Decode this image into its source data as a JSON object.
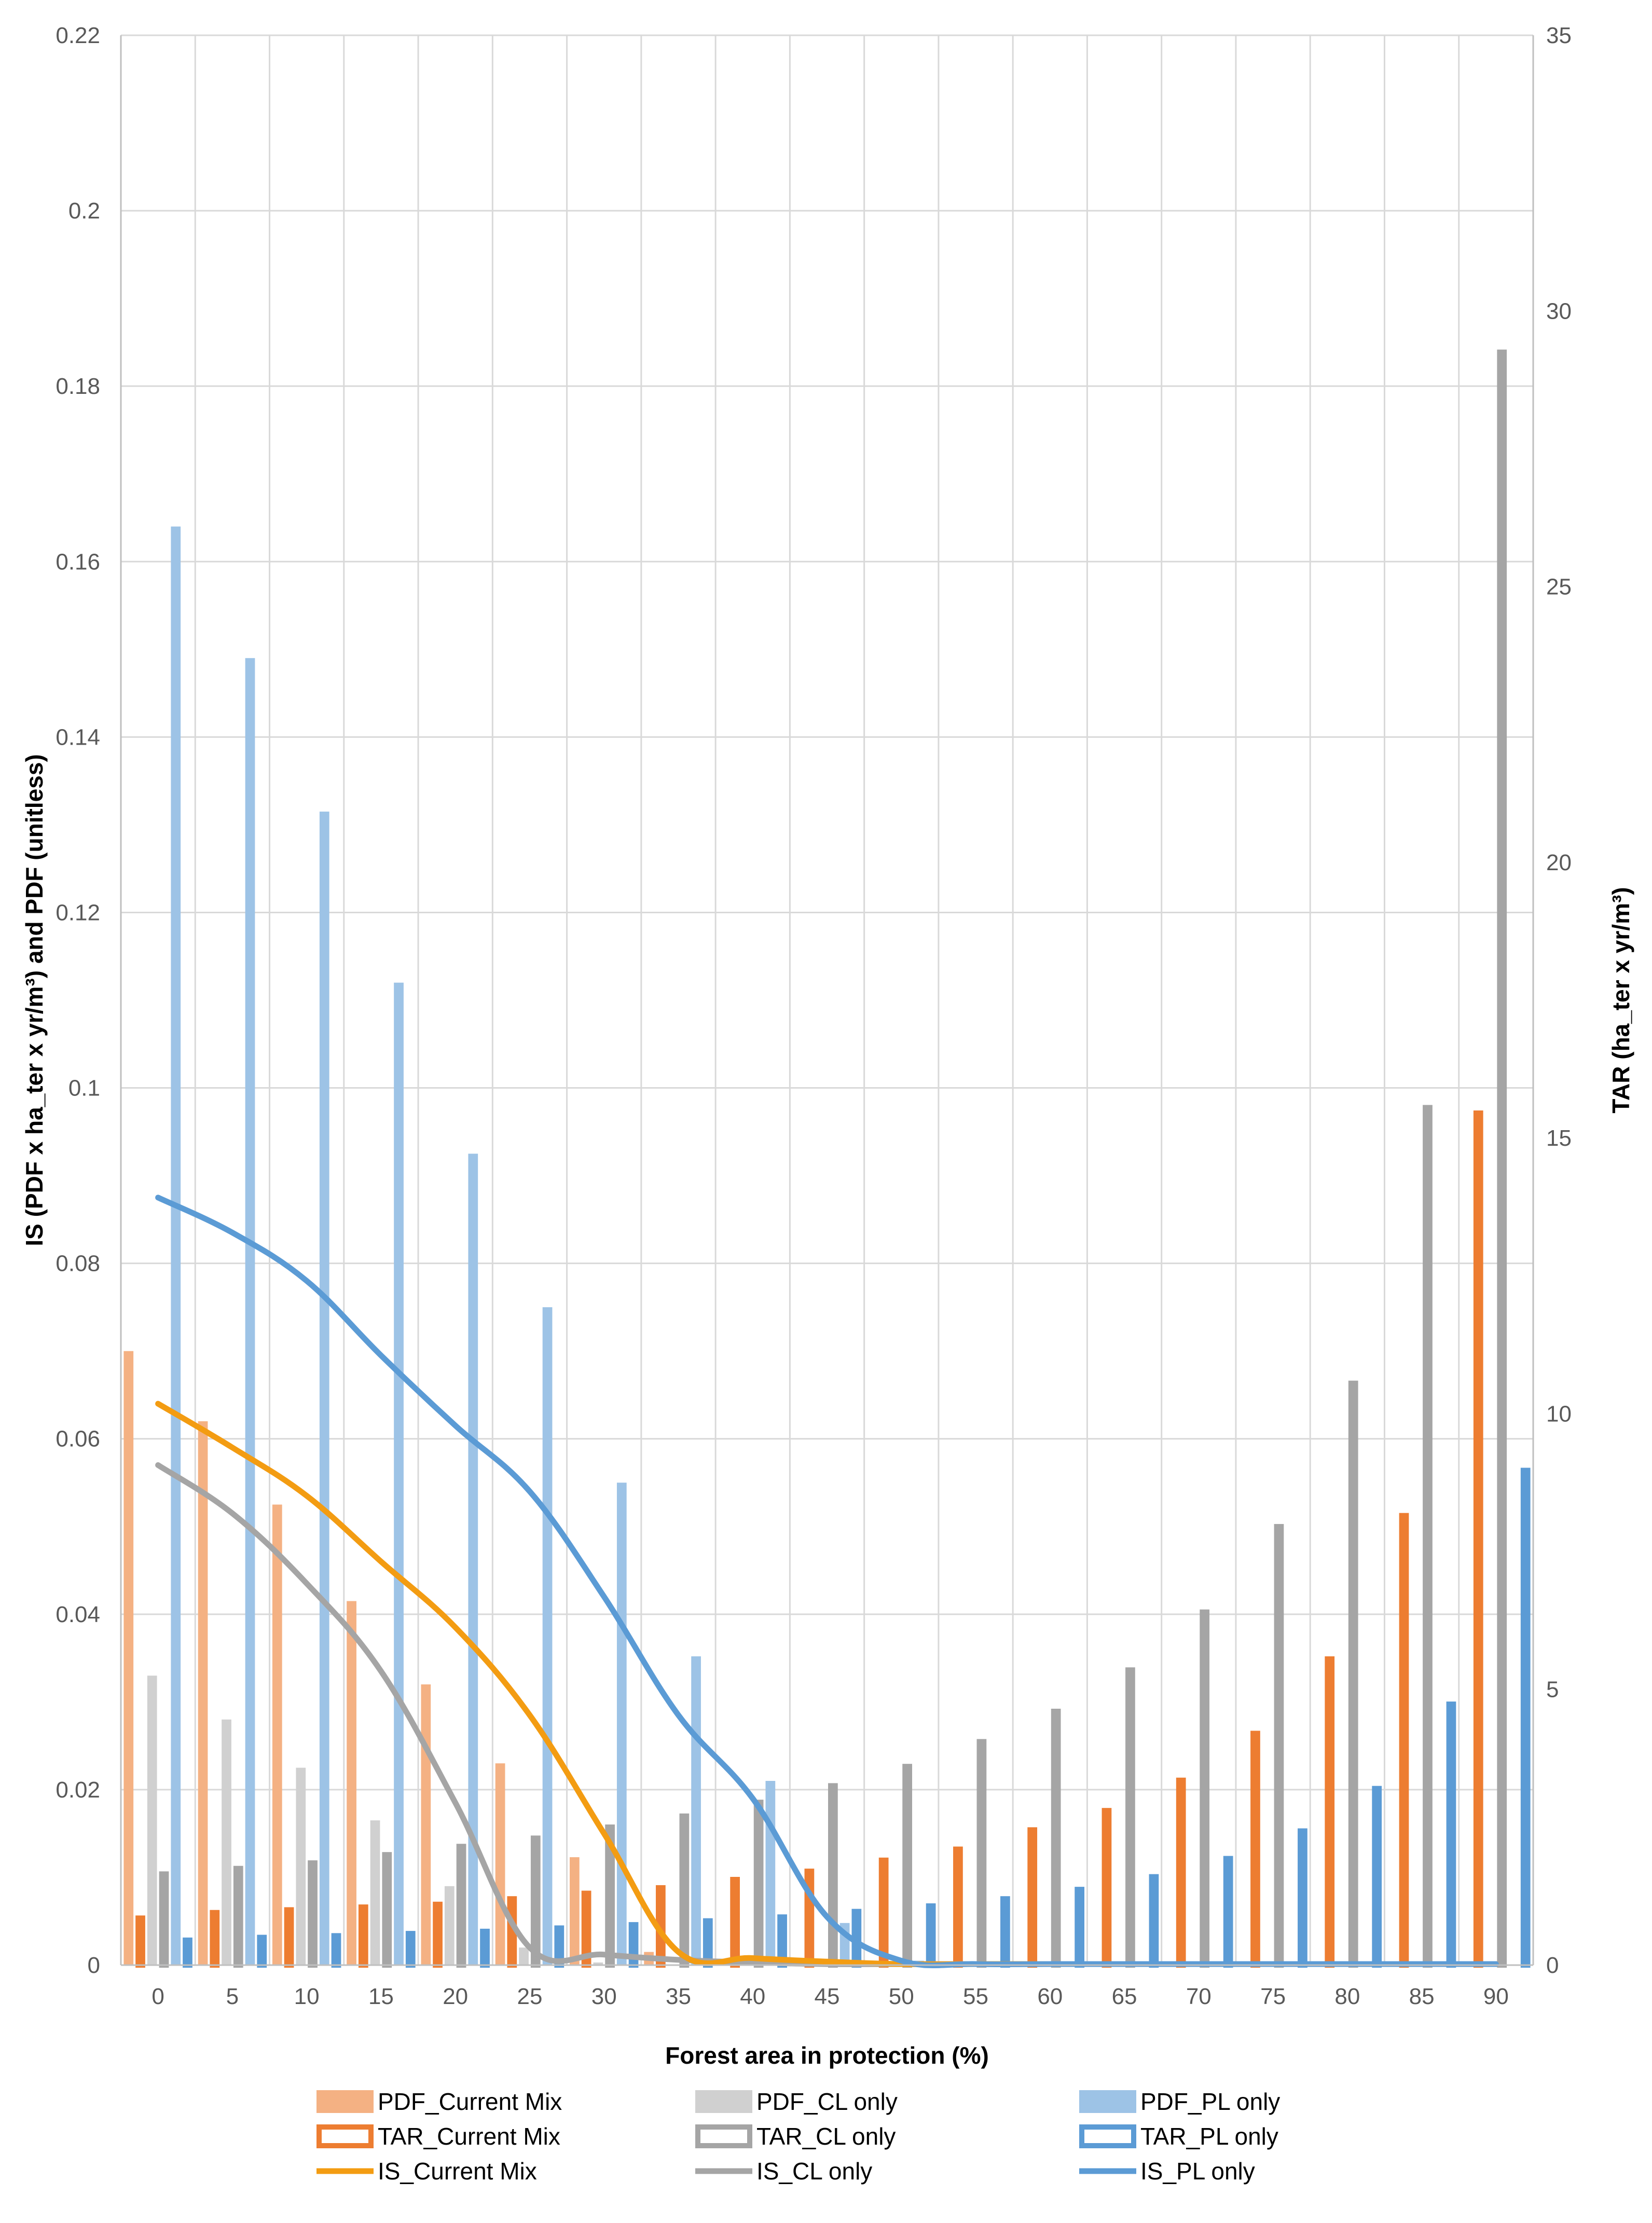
{
  "chart_data": {
    "type": "bar",
    "xlabel": "Forest area in protection (%)",
    "ylabel": "IS (PDF x ha_ter x yr/m³) and PDF (unitless)",
    "y2label": "TAR (ha_ter x yr/m³)",
    "categories": [
      "0",
      "5",
      "10",
      "15",
      "20",
      "25",
      "30",
      "35",
      "40",
      "45",
      "50",
      "55",
      "60",
      "65",
      "70",
      "75",
      "80",
      "85",
      "90"
    ],
    "ylim": [
      0,
      0.22
    ],
    "yticks": [
      "0",
      "0.02",
      "0.04",
      "0.06",
      "0.08",
      "0.1",
      "0.12",
      "0.14",
      "0.16",
      "0.18",
      "0.2",
      "0.22"
    ],
    "y2lim": [
      0,
      35
    ],
    "y2ticks": [
      "0",
      "5",
      "10",
      "15",
      "20",
      "25",
      "30",
      "35"
    ],
    "grid": true,
    "legend_position": "bottom",
    "series": [
      {
        "name": "PDF_Current Mix",
        "axis": "left",
        "kind": "bar-filled",
        "color": "#F4B183",
        "values": [
          0.07,
          0.062,
          0.0525,
          0.0415,
          0.032,
          0.023,
          0.0123,
          0.0015,
          0.0005,
          0,
          0,
          0,
          0,
          0,
          0,
          0,
          0,
          0,
          0
        ]
      },
      {
        "name": "TAR_Current Mix",
        "axis": "right",
        "kind": "bar-outline",
        "color": "#ED7D31",
        "values": [
          0.9,
          1.0,
          1.05,
          1.1,
          1.15,
          1.25,
          1.35,
          1.45,
          1.6,
          1.75,
          1.95,
          2.15,
          2.5,
          2.85,
          3.4,
          4.25,
          5.6,
          8.2,
          15.5
        ]
      },
      {
        "name": "IS_Current Mix",
        "axis": "left",
        "kind": "line",
        "color": "#F39C12",
        "values": [
          0.064,
          0.059,
          0.0535,
          0.046,
          0.0385,
          0.0285,
          0.015,
          0.0015,
          0.0008,
          0.0004,
          0,
          0,
          0,
          0,
          0,
          0,
          0,
          0,
          0
        ]
      },
      {
        "name": "PDF_CL only",
        "axis": "left",
        "kind": "bar-filled",
        "color": "#D0D0D0",
        "values": [
          0.033,
          0.028,
          0.0225,
          0.0165,
          0.009,
          0.002,
          0.0003,
          0,
          0,
          0,
          0,
          0,
          0,
          0,
          0,
          0,
          0,
          0,
          0
        ]
      },
      {
        "name": "TAR_CL only",
        "axis": "right",
        "kind": "bar-outline",
        "color": "#A5A5A5",
        "values": [
          1.7,
          1.8,
          1.9,
          2.05,
          2.2,
          2.35,
          2.55,
          2.75,
          3.0,
          3.3,
          3.65,
          4.1,
          4.65,
          5.4,
          6.45,
          8.0,
          10.6,
          15.6,
          29.3
        ]
      },
      {
        "name": "IS_CL only",
        "axis": "left",
        "kind": "line",
        "color": "#A5A5A5",
        "values": [
          0.057,
          0.0515,
          0.0435,
          0.0335,
          0.0185,
          0.002,
          0.0012,
          0.0006,
          0.0003,
          0,
          0,
          0,
          0,
          0,
          0,
          0,
          0,
          0,
          0
        ]
      },
      {
        "name": "PDF_PL only",
        "axis": "left",
        "kind": "bar-filled",
        "color": "#9DC3E6",
        "values": [
          0.164,
          0.149,
          0.1315,
          0.112,
          0.0925,
          0.075,
          0.055,
          0.0352,
          0.021,
          0.0048,
          0.0005,
          0.0001,
          0,
          0,
          0,
          0,
          0,
          0,
          0
        ]
      },
      {
        "name": "TAR_PL only",
        "axis": "right",
        "kind": "bar-outline",
        "color": "#5B9BD5",
        "values": [
          0.5,
          0.55,
          0.58,
          0.62,
          0.66,
          0.72,
          0.78,
          0.85,
          0.92,
          1.02,
          1.12,
          1.25,
          1.42,
          1.65,
          1.98,
          2.48,
          3.25,
          4.78,
          9.02
        ]
      },
      {
        "name": "IS_PL only",
        "axis": "left",
        "kind": "line",
        "color": "#5B9BD5",
        "values": [
          0.0875,
          0.0835,
          0.078,
          0.0695,
          0.0615,
          0.054,
          0.042,
          0.0285,
          0.019,
          0.0055,
          0.0005,
          0.0001,
          0,
          0,
          0,
          0,
          0,
          0,
          0
        ]
      }
    ],
    "legend": [
      "PDF_Current Mix",
      "PDF_CL only",
      "PDF_PL only",
      "TAR_Current Mix",
      "TAR_CL only",
      "TAR_PL only",
      "IS_Current Mix",
      "IS_CL only",
      "IS_PL only"
    ]
  }
}
